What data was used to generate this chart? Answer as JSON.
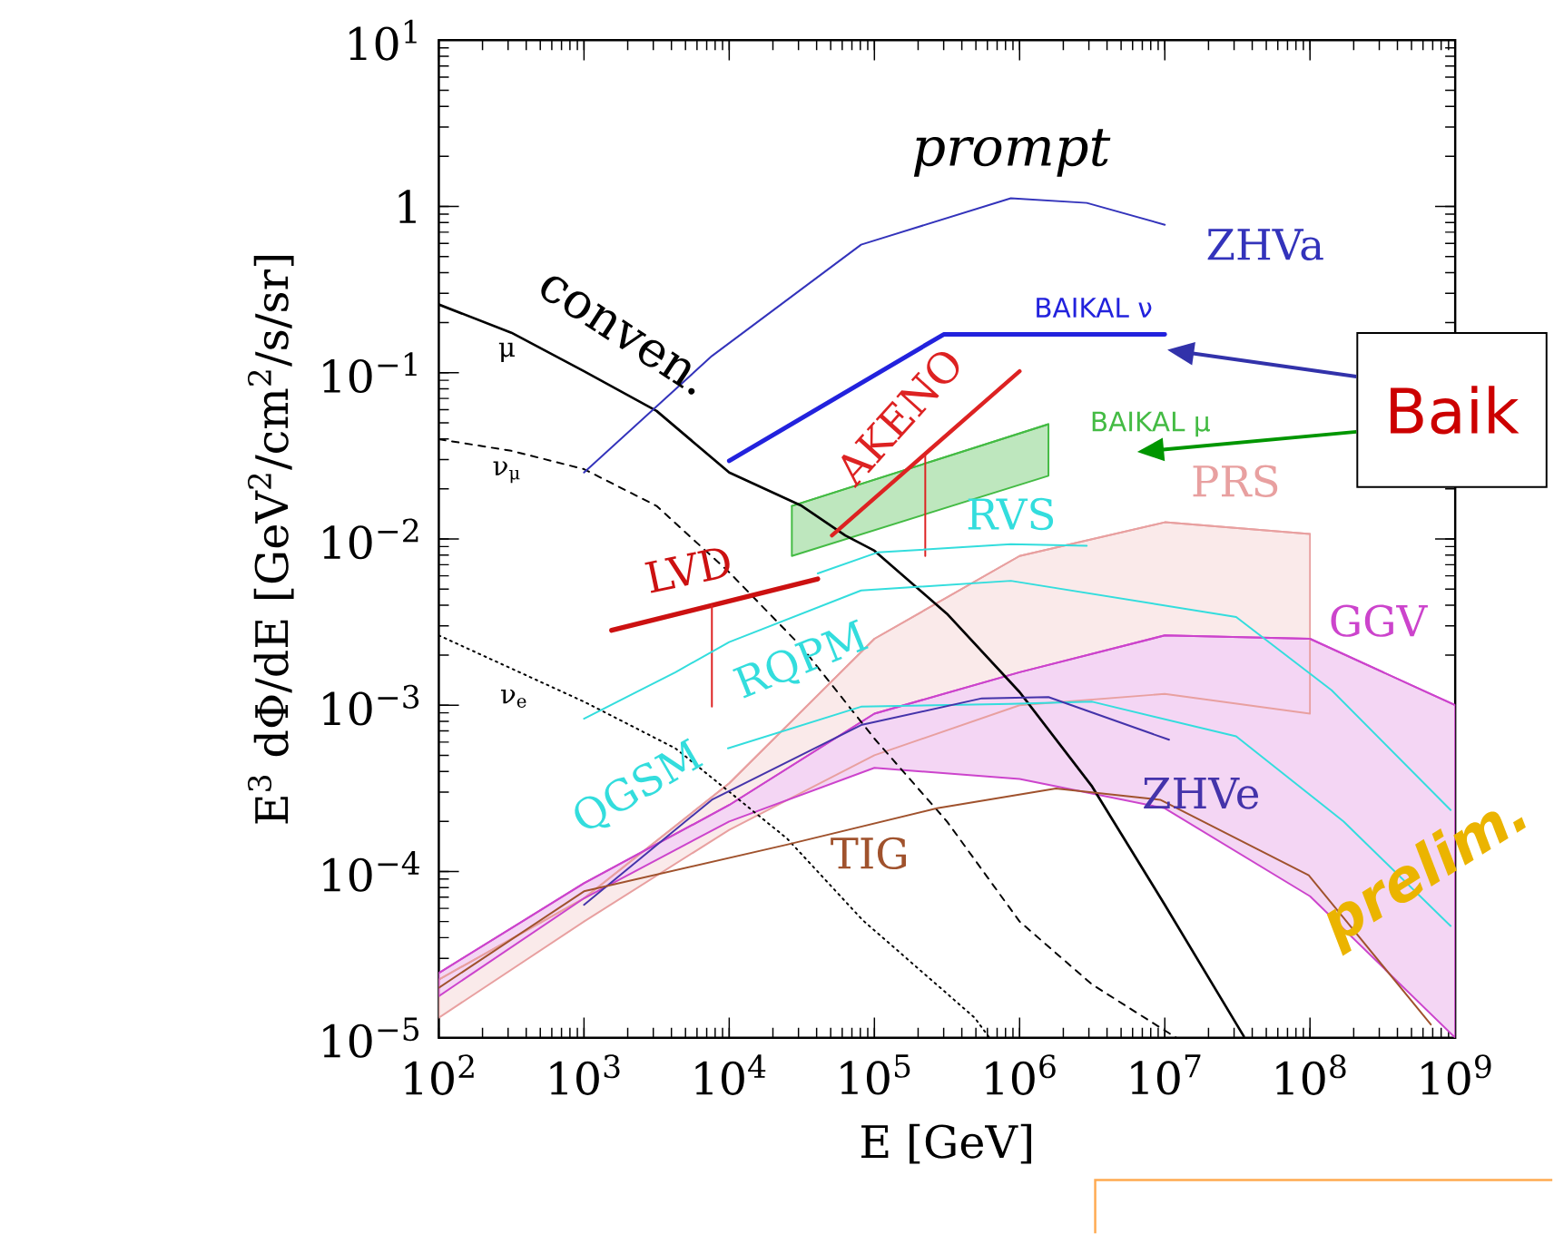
{
  "chart_data": {
    "type": "line",
    "log": "xy",
    "grid": false,
    "xlabel": "E  [GeV]",
    "ylabel": "E$^{3}$ dΦ/dE  [GeV$^{2}$/cm$^{2}$/s/sr]",
    "xlim": [
      100,
      1000000000
    ],
    "ylim": [
      1e-05,
      10
    ],
    "xticks": [
      {
        "value": 100,
        "label": "10$^{2}$"
      },
      {
        "value": 1000,
        "label": "10$^{3}$"
      },
      {
        "value": 10000,
        "label": "10$^{4}$"
      },
      {
        "value": 100000,
        "label": "10$^{5}$"
      },
      {
        "value": 1000000,
        "label": "10$^{6}$"
      },
      {
        "value": 10000000,
        "label": "10$^{7}$"
      },
      {
        "value": 100000000,
        "label": "10$^{8}$"
      },
      {
        "value": 1000000000,
        "label": "10$^{9}$"
      }
    ],
    "yticks": [
      {
        "value": 1e-05,
        "label": "10$^{−5}$"
      },
      {
        "value": 0.0001,
        "label": "10$^{−4}$"
      },
      {
        "value": 0.001,
        "label": "10$^{−3}$"
      },
      {
        "value": 0.01,
        "label": "10$^{−2}$"
      },
      {
        "value": 0.1,
        "label": "10$^{−1}$"
      },
      1,
      {
        "value": 10,
        "label": "10$^{1}$"
      }
    ],
    "series": [
      {
        "color": "#000000",
        "line_style": "solid",
        "x": [
          100,
          316,
          1000,
          3160,
          10000,
          31600,
          63000,
          100000,
          316000,
          1000000,
          3160000,
          10000000,
          35000000
        ],
        "values": [
          0.257,
          0.174,
          0.102,
          0.0589,
          0.0251,
          0.0158,
          0.0105,
          0.0085,
          0.00355,
          0.0012,
          0.000324,
          6.3e-05,
          1.02e-05
        ]
      },
      {
        "color": "#000000",
        "line_style": "dashed",
        "x": [
          100,
          316,
          1000,
          3160,
          10000,
          31600,
          100000,
          316000,
          1000000,
          3160000,
          12000000
        ],
        "values": [
          0.0398,
          0.0339,
          0.0263,
          0.0158,
          0.0063,
          0.00224,
          0.00063,
          0.0002,
          5e-05,
          2.09e-05,
          1e-05
        ]
      },
      {
        "color": "#000000",
        "line_style": "dotted",
        "x": [
          100,
          1000,
          4270,
          25000,
          83000,
          490000,
          620000
        ],
        "values": [
          0.00263,
          0.00105,
          0.00055,
          0.000158,
          5.1e-05,
          1.32e-05,
          1e-05
        ]
      },
      {
        "color": "#3333bb",
        "x": [
          1000,
          7600,
          81000,
          870000,
          2900000,
          10000000
        ],
        "values": [
          0.0251,
          0.126,
          0.589,
          1.12,
          1.05,
          0.776
        ]
      },
      {
        "color": "#2222dd",
        "x": [
          10000,
          300000,
          10000000
        ],
        "values": [
          0.0295,
          0.17,
          0.17
        ]
      },
      {
        "color": "#dd2222",
        "x": [
          51000,
          1000000
        ],
        "values": [
          0.0105,
          0.102
        ]
      },
      {
        "color": "#dd2222",
        "x": [
          224000,
          224000
        ],
        "values": [
          0.0324,
          0.0079
        ]
      },
      {
        "color": "#cc1111",
        "x": [
          1550,
          40700
        ],
        "values": [
          0.00282,
          0.00575
        ]
      },
      {
        "color": "#dd2222",
        "x": [
          7600,
          7600
        ],
        "values": [
          0.00398,
          0.00098
        ]
      },
      {
        "color": "#44bb44",
        "x": [
          27000,
          1580000
        ],
        "values": [
          0.0158,
          0.049
        ],
        "lower": [
          0.0079,
          0.024
        ],
        "upper": [
          0.0158,
          0.049
        ]
      },
      {
        "color": "#33dddd",
        "x": [
          40700,
          105000,
          870000,
          2900000
        ],
        "values": [
          0.0062,
          0.0083,
          0.0093,
          0.0091
        ]
      },
      {
        "color": "#33dddd",
        "x": [
          1000,
          4270,
          10000,
          81000,
          870000,
          31000000,
          141000000,
          930000000
        ],
        "values": [
          0.00083,
          0.00158,
          0.0024,
          0.0049,
          0.0056,
          0.00339,
          0.00123,
          0.000234
        ]
      },
      {
        "color": "#33dddd",
        "x": [
          9800,
          81000,
          870000,
          3160000,
          31000000,
          170000000,
          930000000
        ],
        "values": [
          0.00055,
          0.00098,
          0.00102,
          0.00105,
          0.00065,
          0.0002,
          4.7e-05
        ]
      },
      {
        "color": "#e8a0a0",
        "x": [
          100,
          1000,
          10000,
          100000,
          1000000,
          10000000,
          100000000
        ],
        "values": [
          2.24e-05,
          6.9e-05,
          0.000339,
          0.00251,
          0.0079,
          0.0126,
          0.0107
        ],
        "lower": [
          1.32e-05,
          5e-05,
          0.000178,
          0.0005,
          0.001,
          0.00117,
          0.00089
        ],
        "upper": [
          2.24e-05,
          6.9e-05,
          0.000339,
          0.00251,
          0.0079,
          0.0126,
          0.0107
        ]
      },
      {
        "color": "#cc44cc",
        "x": [
          100,
          1000,
          10000,
          100000,
          1000000,
          10000000,
          100000000,
          1000000000
        ],
        "values": [
          2.45e-05,
          8.5e-05,
          0.000251,
          0.00089,
          0.00158,
          0.00263,
          0.00251,
          0.001
        ],
        "lower": [
          1.78e-05,
          6.9e-05,
          0.0002,
          0.00042,
          0.00036,
          0.00024,
          7.1e-05,
          1e-05
        ],
        "upper": [
          2.45e-05,
          8.5e-05,
          0.000251,
          0.00089,
          0.00158,
          0.00263,
          0.00251,
          0.001
        ]
      },
      {
        "color": "#4433aa",
        "x": [
          1000,
          7600,
          81000,
          550000,
          1580000,
          10700000
        ],
        "values": [
          6.3e-05,
          0.00027,
          0.00076,
          0.0011,
          0.00112,
          0.00062
        ]
      },
      {
        "color": "#a0522d",
        "x": [
          100,
          1000,
          25000,
          270000,
          1780000,
          9300000,
          98000000,
          680000000
        ],
        "values": [
          2e-05,
          7.6e-05,
          0.000145,
          0.00024,
          0.000316,
          0.00027,
          9.5e-05,
          1.2e-05
        ]
      }
    ],
    "annotations": [
      "*prompt*",
      "conven.",
      "μ",
      "ν$_{μ}$",
      "ν$_{e}$",
      "ZHVa",
      "BAIKAL ν",
      "AKENO",
      "BAIKAL μ",
      "PRS",
      "RVS",
      {
        "text": "LVD",
        "x": 6000,
        "y": 0.0038
      },
      "RQPM",
      "GGV",
      "QGSM",
      "ZHVe",
      "TIG",
      "prelim.",
      "Baik"
    ]
  }
}
